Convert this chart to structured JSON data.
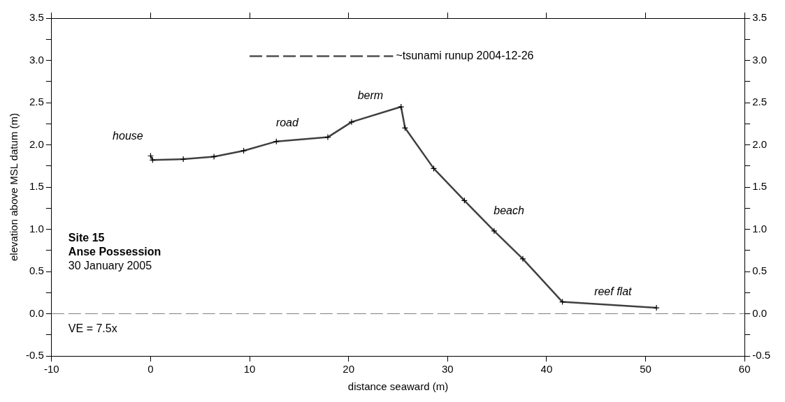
{
  "chart_data": {
    "type": "line",
    "xlabel": "distance seaward (m)",
    "ylabel": "elevation above MSL datum (m)",
    "xlim": [
      -10,
      60
    ],
    "xticks": [
      -10,
      0,
      10,
      20,
      30,
      40,
      50,
      60
    ],
    "ylim": [
      -0.5,
      3.5
    ],
    "yticks": [
      {
        "value": -0.5,
        "label": "-0.5"
      },
      {
        "value": -0.25,
        "label": null
      },
      {
        "value": 0,
        "label": "0.0"
      },
      {
        "value": 0.25,
        "label": null
      },
      {
        "value": 0.5,
        "label": "0.5"
      },
      {
        "value": 0.75,
        "label": null
      },
      {
        "value": 1,
        "label": "1.0"
      },
      {
        "value": 1.25,
        "label": null
      },
      {
        "value": 1.5,
        "label": "1.5"
      },
      {
        "value": 1.75,
        "label": null
      },
      {
        "value": 2,
        "label": "2.0"
      },
      {
        "value": 2.25,
        "label": null
      },
      {
        "value": 2.5,
        "label": "2.5"
      },
      {
        "value": 2.75,
        "label": null
      },
      {
        "value": 3,
        "label": "3.0"
      },
      {
        "value": 3.25,
        "label": null
      },
      {
        "value": 3.5,
        "label": "3.5"
      }
    ],
    "y2lim": [
      -0.5,
      3.5
    ],
    "y2ticks": [
      {
        "value": -0.5,
        "label": "-0.5"
      },
      {
        "value": -0.25,
        "label": null
      },
      {
        "value": 0,
        "label": "0.0"
      },
      {
        "value": 0.25,
        "label": null
      },
      {
        "value": 0.5,
        "label": "0.5"
      },
      {
        "value": 0.75,
        "label": null
      },
      {
        "value": 1,
        "label": "1.0"
      },
      {
        "value": 1.25,
        "label": null
      },
      {
        "value": 1.5,
        "label": "1.5"
      },
      {
        "value": 1.75,
        "label": null
      },
      {
        "value": 2,
        "label": "2.0"
      },
      {
        "value": 2.25,
        "label": null
      },
      {
        "value": 2.5,
        "label": "2.5"
      },
      {
        "value": 2.75,
        "label": null
      },
      {
        "value": 3,
        "label": "3.0"
      },
      {
        "value": 3.25,
        "label": null
      },
      {
        "value": 3.5,
        "label": "3.5"
      }
    ],
    "grid": false,
    "legend": false,
    "series": [
      {
        "color": "#404040",
        "marker": "cross",
        "line_style": "solid",
        "x": [
          0,
          0.2,
          3.3,
          6.4,
          9.4,
          12.7,
          17.9,
          20.3,
          25.3,
          25.7,
          28.6,
          31.7,
          34.7,
          37.6,
          41.6,
          51.1
        ],
        "values": [
          1.87,
          1.82,
          1.83,
          1.86,
          1.93,
          2.04,
          2.09,
          2.27,
          2.45,
          2.2,
          1.72,
          1.34,
          0.98,
          0.65,
          0.14,
          0.07
        ]
      },
      {
        "name": "~tsunami runup 2004-12-26",
        "color": "#505050",
        "marker": "none",
        "line_style": "dashed",
        "x": [
          10,
          24.5
        ],
        "values": [
          3.05,
          3.05
        ]
      }
    ],
    "ref_lines": [
      {
        "axis": "y",
        "value": 0,
        "label": null,
        "color": "#808080",
        "line_style": "dashed"
      }
    ],
    "annotations": [
      "house",
      "road",
      "berm",
      "beach",
      "reef flat",
      "Site 15",
      "Anse Possession",
      "30 January 2005",
      "VE = 7.5x"
    ]
  }
}
